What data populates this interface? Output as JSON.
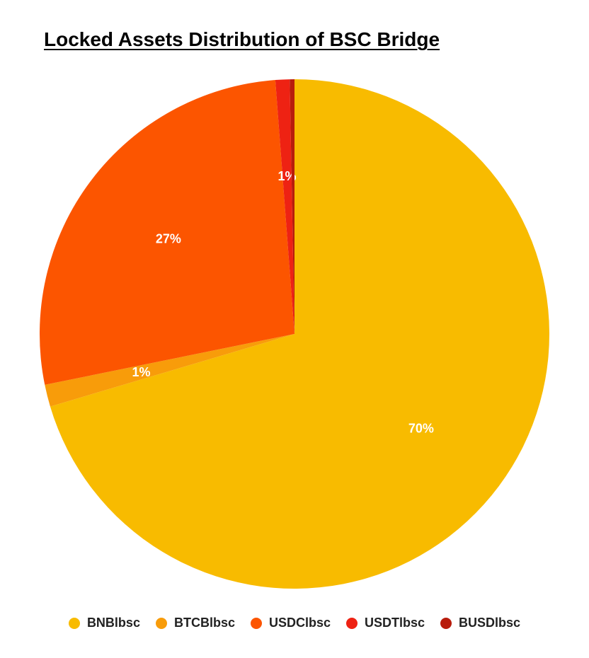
{
  "chart_data": {
    "type": "pie",
    "title": "Locked Assets Distribution of BSC Bridge",
    "legend_position": "bottom",
    "slices": [
      {
        "name": "BNBlbsc",
        "value": 70.4,
        "label": "70%",
        "color": "#F8BB00"
      },
      {
        "name": "BTCBlbsc",
        "value": 1.4,
        "label": "1%",
        "color": "#F89C0A"
      },
      {
        "name": "USDClbsc",
        "value": 27.0,
        "label": "27%",
        "color": "#FC5500"
      },
      {
        "name": "USDTlbsc",
        "value": 0.9,
        "label": "1%",
        "color": "#EE2213"
      },
      {
        "name": "BUSDlbsc",
        "value": 0.3,
        "label": "",
        "color": "#B81C0C"
      }
    ]
  }
}
